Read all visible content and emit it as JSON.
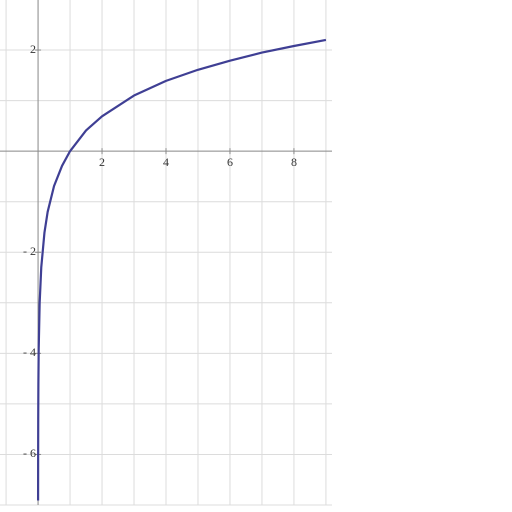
{
  "chart_data": {
    "type": "line",
    "x": [
      0.001,
      0.002,
      0.005,
      0.01,
      0.02,
      0.05,
      0.1,
      0.2,
      0.3,
      0.5,
      0.75,
      1,
      1.5,
      2,
      3,
      4,
      5,
      6,
      7,
      8,
      9
    ],
    "series": [
      {
        "color": "#3f3f94",
        "values": [
          -6.91,
          -6.21,
          -5.3,
          -4.61,
          -3.91,
          -3.0,
          -2.3,
          -1.61,
          -1.2,
          -0.69,
          -0.29,
          0,
          0.41,
          0.69,
          1.1,
          1.39,
          1.61,
          1.79,
          1.95,
          2.08,
          2.2
        ]
      }
    ],
    "xlim": [
      -1.19,
      9.19
    ],
    "ylim": [
      -7.0,
      2.99
    ],
    "xticks": [
      2,
      4,
      6,
      8
    ],
    "yticks": [
      {
        "value": -6,
        "label": "- 6"
      },
      {
        "value": -4,
        "label": "- 4"
      },
      {
        "value": -2,
        "label": "- 2"
      },
      2
    ],
    "xgrid": [
      -1,
      1,
      2,
      3,
      4,
      5,
      6,
      7,
      8,
      9
    ],
    "ygrid": [
      -7,
      -6,
      -5,
      -4,
      -3,
      -2,
      -1,
      1,
      2
    ],
    "grid": true
  }
}
